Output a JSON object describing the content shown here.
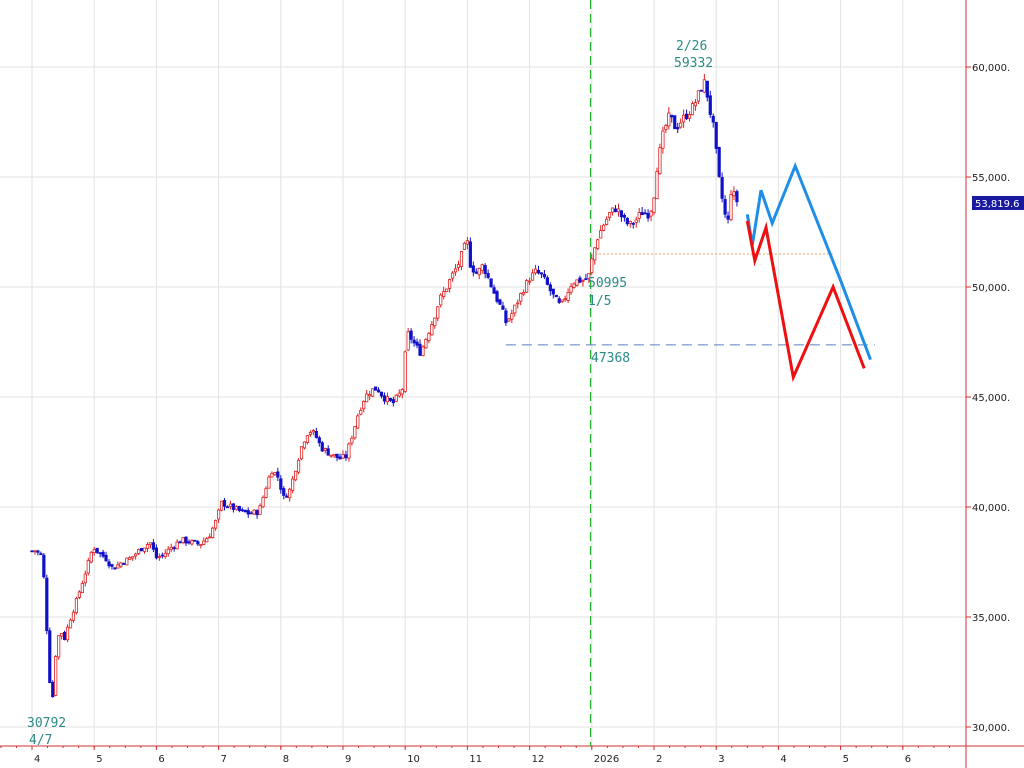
{
  "chart_data": {
    "type": "line",
    "title": "",
    "xlabel": "",
    "ylabel": "",
    "ylim": [
      29500,
      62500
    ],
    "grid": true,
    "x_tick_labels": [
      {
        "label": "4",
        "month_index": 0
      },
      {
        "label": "5",
        "month_index": 1
      },
      {
        "label": "6",
        "month_index": 2
      },
      {
        "label": "7",
        "month_index": 3
      },
      {
        "label": "8",
        "month_index": 4
      },
      {
        "label": "9",
        "month_index": 5
      },
      {
        "label": "10",
        "month_index": 6
      },
      {
        "label": "11",
        "month_index": 7
      },
      {
        "label": "12",
        "month_index": 8
      },
      {
        "label": "2026",
        "month_index": 9
      },
      {
        "label": "2",
        "month_index": 10
      },
      {
        "label": "3",
        "month_index": 11
      },
      {
        "label": "4",
        "month_index": 12
      },
      {
        "label": "5",
        "month_index": 13
      },
      {
        "label": "6",
        "month_index": 14
      }
    ],
    "y_ticks": [
      {
        "value": 30000,
        "label": "30,000."
      },
      {
        "value": 35000,
        "label": "35,000."
      },
      {
        "value": 40000,
        "label": "40,000."
      },
      {
        "value": 45000,
        "label": "45,000."
      },
      {
        "value": 50000,
        "label": "50,000."
      },
      {
        "value": 55000,
        "label": "55,000."
      },
      {
        "value": 60000,
        "label": "60,000."
      }
    ],
    "current_price": {
      "value": 53819.6,
      "label": "53,819.6",
      "color": "#1a1aa0"
    },
    "price_path": [
      [
        0.0,
        38000
      ],
      [
        0.08,
        38050
      ],
      [
        0.12,
        37700
      ],
      [
        0.16,
        37900
      ],
      [
        0.19,
        36800
      ],
      [
        0.22,
        35500
      ],
      [
        0.26,
        33200
      ],
      [
        0.3,
        31500
      ],
      [
        0.32,
        30792
      ],
      [
        0.36,
        32600
      ],
      [
        0.4,
        33900
      ],
      [
        0.46,
        34400
      ],
      [
        0.52,
        34000
      ],
      [
        0.6,
        34800
      ],
      [
        0.7,
        35600
      ],
      [
        0.8,
        36500
      ],
      [
        0.9,
        37400
      ],
      [
        0.98,
        38200
      ],
      [
        1.08,
        37900
      ],
      [
        1.18,
        37700
      ],
      [
        1.3,
        37200
      ],
      [
        1.45,
        37500
      ],
      [
        1.6,
        37700
      ],
      [
        1.75,
        38100
      ],
      [
        1.9,
        38400
      ],
      [
        2.0,
        37700
      ],
      [
        2.1,
        37800
      ],
      [
        2.25,
        38200
      ],
      [
        2.4,
        38500
      ],
      [
        2.55,
        38400
      ],
      [
        2.7,
        38300
      ],
      [
        2.85,
        38700
      ],
      [
        2.95,
        39300
      ],
      [
        3.05,
        40200
      ],
      [
        3.2,
        40000
      ],
      [
        3.35,
        39800
      ],
      [
        3.5,
        39700
      ],
      [
        3.65,
        39800
      ],
      [
        3.75,
        40800
      ],
      [
        3.85,
        41700
      ],
      [
        3.95,
        41400
      ],
      [
        4.05,
        40400
      ],
      [
        4.15,
        40800
      ],
      [
        4.25,
        41900
      ],
      [
        4.35,
        42900
      ],
      [
        4.45,
        43500
      ],
      [
        4.55,
        43300
      ],
      [
        4.65,
        42700
      ],
      [
        4.8,
        42400
      ],
      [
        4.95,
        42200
      ],
      [
        5.05,
        42300
      ],
      [
        5.15,
        43300
      ],
      [
        5.25,
        44300
      ],
      [
        5.35,
        45000
      ],
      [
        5.45,
        45300
      ],
      [
        5.55,
        45400
      ],
      [
        5.65,
        45000
      ],
      [
        5.8,
        44700
      ],
      [
        5.95,
        45300
      ],
      [
        6.0,
        46900
      ],
      [
        6.05,
        47900
      ],
      [
        6.15,
        47400
      ],
      [
        6.25,
        47000
      ],
      [
        6.35,
        47800
      ],
      [
        6.45,
        48500
      ],
      [
        6.55,
        49400
      ],
      [
        6.65,
        49900
      ],
      [
        6.75,
        50500
      ],
      [
        6.85,
        51000
      ],
      [
        6.95,
        51800
      ],
      [
        7.0,
        52000
      ],
      [
        7.05,
        51000
      ],
      [
        7.15,
        50600
      ],
      [
        7.25,
        51000
      ],
      [
        7.35,
        50300
      ],
      [
        7.45,
        49600
      ],
      [
        7.55,
        49000
      ],
      [
        7.62,
        48400
      ],
      [
        7.7,
        48700
      ],
      [
        7.8,
        49300
      ],
      [
        7.9,
        49900
      ],
      [
        8.0,
        50400
      ],
      [
        8.1,
        50700
      ],
      [
        8.2,
        50500
      ],
      [
        8.3,
        50000
      ],
      [
        8.4,
        49500
      ],
      [
        8.5,
        49100
      ],
      [
        8.58,
        49600
      ],
      [
        8.68,
        50200
      ],
      [
        8.78,
        50300
      ],
      [
        8.88,
        50300
      ],
      [
        8.95,
        50500
      ],
      [
        9.02,
        51500
      ],
      [
        9.1,
        52300
      ],
      [
        9.2,
        52900
      ],
      [
        9.3,
        53400
      ],
      [
        9.4,
        53600
      ],
      [
        9.5,
        53100
      ],
      [
        9.6,
        52800
      ],
      [
        9.7,
        53000
      ],
      [
        9.8,
        53400
      ],
      [
        9.9,
        53300
      ],
      [
        9.98,
        53700
      ],
      [
        10.05,
        55500
      ],
      [
        10.15,
        57000
      ],
      [
        10.25,
        57800
      ],
      [
        10.35,
        57200
      ],
      [
        10.45,
        57600
      ],
      [
        10.55,
        57900
      ],
      [
        10.65,
        58300
      ],
      [
        10.75,
        59000
      ],
      [
        10.82,
        59332
      ],
      [
        10.9,
        58000
      ],
      [
        10.96,
        57200
      ],
      [
        11.0,
        56100
      ],
      [
        11.05,
        54800
      ],
      [
        11.12,
        53600
      ],
      [
        11.18,
        52700
      ],
      [
        11.24,
        54400
      ],
      [
        11.3,
        54100
      ],
      [
        11.35,
        53819.6
      ]
    ],
    "annotations": [
      {
        "date": "4/7",
        "value": 30792,
        "label_value": "30792",
        "label_date": "4/7"
      },
      {
        "date": "1/5",
        "value": 50995,
        "label_value": "50995",
        "label_date": "1/5"
      },
      {
        "date": "2/26",
        "value": 59332,
        "label_value": "59332",
        "label_date": "2/26"
      },
      {
        "value": 47368,
        "label_value": "47368"
      }
    ],
    "reference_lines": [
      {
        "kind": "vertical",
        "at_month_index": 8.98,
        "color": "#22b030",
        "style": "dashed"
      },
      {
        "kind": "horizontal",
        "value": 47368,
        "from_month_index": 7.62,
        "to_month_index": 13.55,
        "color": "#5a7fc0",
        "style": "dashed"
      },
      {
        "kind": "horizontal",
        "value": 51500,
        "from_month_index": 9.05,
        "to_month_index": 12.9,
        "color": "#e9a060",
        "style": "dotted"
      }
    ],
    "series": [
      {
        "color": "#1e8ee8",
        "x": [
          11.5,
          11.58,
          11.72,
          11.9,
          12.27,
          13.0,
          13.48
        ],
        "values": [
          53300,
          51900,
          54400,
          52900,
          55500,
          50300,
          46700
        ]
      },
      {
        "color": "#ee1010",
        "x": [
          11.5,
          11.62,
          11.8,
          12.24,
          12.88,
          13.38
        ],
        "values": [
          53000,
          51200,
          52700,
          45900,
          50000,
          46300
        ]
      }
    ]
  }
}
